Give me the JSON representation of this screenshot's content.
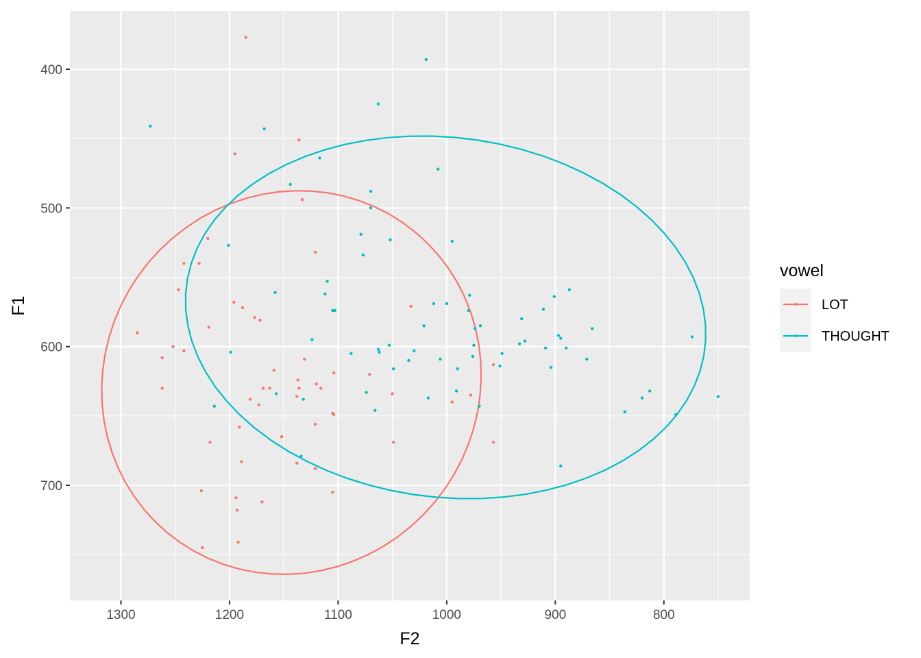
{
  "chart_data": {
    "type": "scatter",
    "xlabel": "F2",
    "ylabel": "F1",
    "x_reversed": true,
    "y_reversed": true,
    "xlim": [
      1347,
      721
    ],
    "ylim": [
      358,
      783
    ],
    "x_ticks": [
      1300,
      1200,
      1100,
      1000,
      900,
      800
    ],
    "x_tick_labels": [
      "1300",
      "1200",
      "1100",
      "1000",
      "900",
      "800"
    ],
    "y_ticks": [
      400,
      500,
      600,
      700
    ],
    "y_tick_labels": [
      "400",
      "500",
      "600",
      "700"
    ],
    "grid": true,
    "legend": {
      "title": "vowel",
      "placement": "right"
    },
    "series": [
      {
        "name": "LOT",
        "color": "#F8766D",
        "points": [
          [
            1185,
            377
          ],
          [
            1195,
            461
          ],
          [
            1136,
            451
          ],
          [
            1133,
            494
          ],
          [
            1220,
            522
          ],
          [
            1121,
            532
          ],
          [
            1242,
            540
          ],
          [
            1228,
            540
          ],
          [
            1247,
            559
          ],
          [
            1196,
            568
          ],
          [
            1188,
            572
          ],
          [
            1177,
            579
          ],
          [
            1172,
            581
          ],
          [
            1219,
            586
          ],
          [
            1033,
            571
          ],
          [
            1285,
            590
          ],
          [
            1252,
            600
          ],
          [
            1242,
            603
          ],
          [
            1262,
            608
          ],
          [
            1131,
            609
          ],
          [
            1159,
            617
          ],
          [
            1104,
            619
          ],
          [
            1071,
            620
          ],
          [
            1137,
            624
          ],
          [
            1120,
            627
          ],
          [
            1136,
            630
          ],
          [
            1116,
            630
          ],
          [
            1169,
            630
          ],
          [
            1163,
            630
          ],
          [
            1262,
            630
          ],
          [
            1050,
            634
          ],
          [
            1138,
            636
          ],
          [
            1181,
            638
          ],
          [
            1173,
            642
          ],
          [
            995,
            640
          ],
          [
            978,
            635
          ],
          [
            1105,
            648
          ],
          [
            1104,
            649
          ],
          [
            1121,
            656
          ],
          [
            1191,
            658
          ],
          [
            1152,
            665
          ],
          [
            1218,
            669
          ],
          [
            1049,
            669
          ],
          [
            957,
            669
          ],
          [
            1189,
            683
          ],
          [
            1138,
            684
          ],
          [
            1121,
            688
          ],
          [
            1226,
            704
          ],
          [
            1105,
            705
          ],
          [
            1194,
            709
          ],
          [
            1170,
            712
          ],
          [
            1193,
            718
          ],
          [
            1192,
            741
          ],
          [
            1225,
            745
          ],
          [
            957,
            613
          ]
        ],
        "ellipse": {
          "center": [
            1143,
            625.9
          ],
          "semi_axes": [
            175,
            138
          ],
          "rotation_deg": 5
        }
      },
      {
        "name": "THOUGHT",
        "color": "#00BFC4",
        "points": [
          [
            1019,
            393
          ],
          [
            1063,
            425
          ],
          [
            1273,
            441
          ],
          [
            1168,
            443
          ],
          [
            1117,
            464
          ],
          [
            1008,
            472
          ],
          [
            1144,
            483
          ],
          [
            1070,
            488
          ],
          [
            1070,
            500
          ],
          [
            1079,
            519
          ],
          [
            1052,
            523
          ],
          [
            995,
            524
          ],
          [
            1201,
            527
          ],
          [
            1077,
            534
          ],
          [
            1110,
            553
          ],
          [
            1158,
            561
          ],
          [
            1112,
            562
          ],
          [
            887,
            559
          ],
          [
            901,
            564
          ],
          [
            979,
            563
          ],
          [
            1012,
            569
          ],
          [
            1000,
            569
          ],
          [
            1105,
            574
          ],
          [
            1103,
            574
          ],
          [
            911,
            573
          ],
          [
            980,
            574
          ],
          [
            931,
            580
          ],
          [
            969,
            585
          ],
          [
            1021,
            585
          ],
          [
            866,
            587
          ],
          [
            974,
            587
          ],
          [
            897,
            592
          ],
          [
            774,
            593
          ],
          [
            895,
            594
          ],
          [
            928,
            596
          ],
          [
            1124,
            595
          ],
          [
            975,
            599
          ],
          [
            933,
            598
          ],
          [
            1053,
            599
          ],
          [
            1063,
            602
          ],
          [
            1062,
            604
          ],
          [
            1199,
            604
          ],
          [
            1088,
            605
          ],
          [
            1030,
            603
          ],
          [
            949,
            605
          ],
          [
            976,
            607
          ],
          [
            909,
            601
          ],
          [
            890,
            601
          ],
          [
            871,
            609
          ],
          [
            1006,
            609
          ],
          [
            1035,
            610
          ],
          [
            990,
            616
          ],
          [
            1049,
            616
          ],
          [
            904,
            615
          ],
          [
            951,
            614
          ],
          [
            991,
            632
          ],
          [
            1074,
            633
          ],
          [
            1157,
            634
          ],
          [
            813,
            632
          ],
          [
            1017,
            637
          ],
          [
            750,
            636
          ],
          [
            820,
            637
          ],
          [
            1132,
            638
          ],
          [
            1214,
            643
          ],
          [
            970,
            643
          ],
          [
            1066,
            646
          ],
          [
            836,
            647
          ],
          [
            789,
            649
          ],
          [
            1134,
            679
          ],
          [
            895,
            686
          ]
        ],
        "ellipse": {
          "center": [
            1001,
            578.9
          ],
          "semi_axes": [
            240,
            130
          ],
          "rotation_deg": -4
        }
      }
    ]
  }
}
